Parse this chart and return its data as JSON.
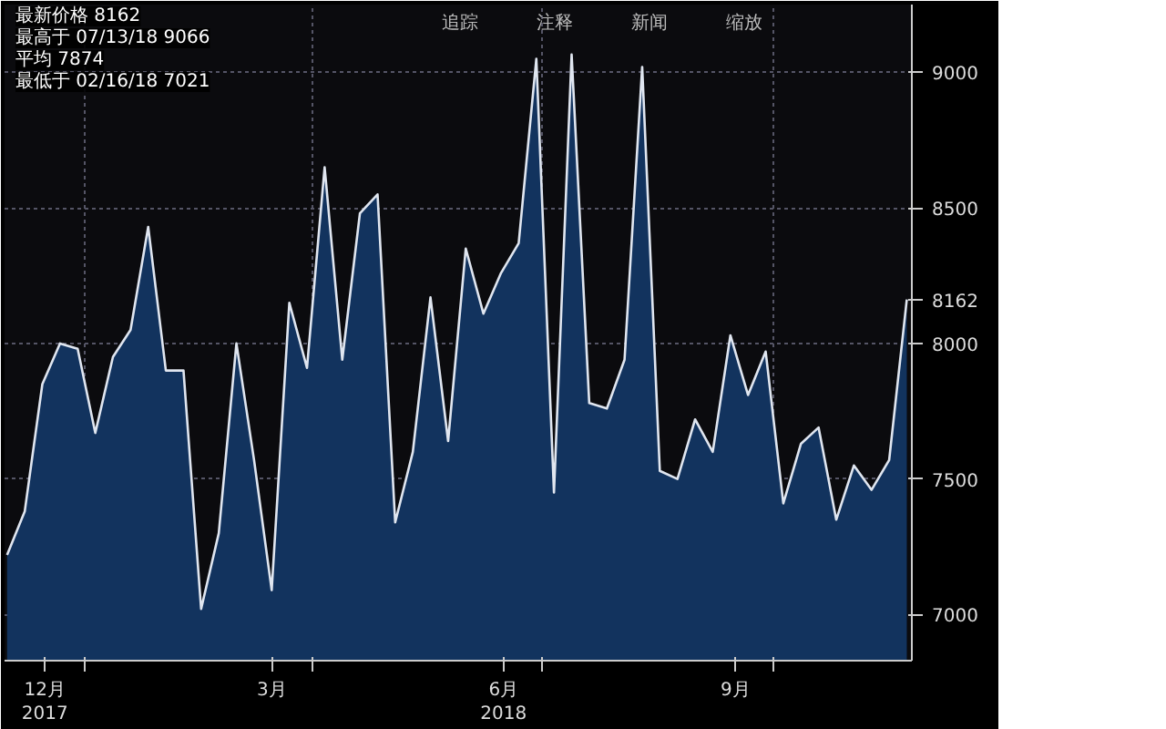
{
  "chart_data": {
    "type": "area",
    "x": [
      "2017-12-01",
      "2017-12-08",
      "2017-12-15",
      "2017-12-22",
      "2017-12-29",
      "2018-01-05",
      "2018-01-12",
      "2018-01-19",
      "2018-01-26",
      "2018-02-02",
      "2018-02-09",
      "2018-02-16",
      "2018-02-23",
      "2018-03-02",
      "2018-03-09",
      "2018-03-16",
      "2018-03-23",
      "2018-03-30",
      "2018-04-06",
      "2018-04-13",
      "2018-04-20",
      "2018-04-27",
      "2018-05-04",
      "2018-05-11",
      "2018-05-18",
      "2018-05-25",
      "2018-06-01",
      "2018-06-08",
      "2018-06-15",
      "2018-06-22",
      "2018-06-29",
      "2018-07-06",
      "2018-07-13",
      "2018-07-20",
      "2018-07-27",
      "2018-08-03",
      "2018-08-10",
      "2018-08-17",
      "2018-08-24",
      "2018-08-31",
      "2018-09-07",
      "2018-09-14",
      "2018-09-21",
      "2018-09-28",
      "2018-10-05",
      "2018-10-12",
      "2018-10-19",
      "2018-10-26",
      "2018-11-02",
      "2018-11-09",
      "2018-11-16",
      "2018-11-23"
    ],
    "series": [
      {
        "color": "#12335e",
        "values": [
          7220,
          7380,
          7850,
          8000,
          7980,
          7670,
          7950,
          8050,
          8430,
          7900,
          7900,
          7021,
          7300,
          8000,
          7570,
          7090,
          8150,
          7910,
          8650,
          7940,
          8480,
          8550,
          7340,
          7600,
          8170,
          7640,
          8350,
          8110,
          8260,
          8370,
          9050,
          7450,
          9066,
          7780,
          7760,
          7940,
          9020,
          7530,
          7500,
          7720,
          7600,
          8030,
          7810,
          7970,
          7410,
          7630,
          7690,
          7350,
          7550,
          7460,
          7570,
          8162
        ]
      }
    ],
    "xlim": [
      "2017-11-30",
      "2018-11-25"
    ],
    "xticks": [
      {
        "value": "2017-12-16",
        "label": "12月\n2017"
      },
      {
        "value": "2018-01-01",
        "label": null
      },
      {
        "value": "2018-03-16",
        "label": "3月"
      },
      {
        "value": "2018-04-01",
        "label": null
      },
      {
        "value": "2018-06-16",
        "label": "6月\n2018"
      },
      {
        "value": "2018-07-01",
        "label": null
      },
      {
        "value": "2018-09-16",
        "label": "9月"
      },
      {
        "value": "2018-10-01",
        "label": null
      }
    ],
    "ylim": [
      6830,
      9250
    ],
    "yticks": [
      7000,
      7500,
      8000,
      {
        "value": 8162,
        "label": "8162"
      },
      8500,
      9000
    ],
    "grid": true,
    "annotations": [
      "最新价格 8162",
      "最高于 07/13/18 9066",
      "平均 7874",
      "最低于 02/16/18 7021",
      "追踪",
      "注释",
      "新闻",
      "缩放"
    ]
  }
}
